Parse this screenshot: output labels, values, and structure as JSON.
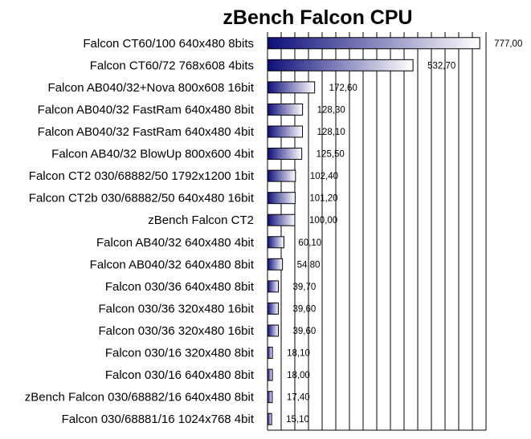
{
  "chart_data": {
    "type": "bar",
    "orientation": "horizontal",
    "title": "zBench Falcon CPU",
    "xlabel": "",
    "ylabel": "",
    "xlim": [
      0,
      800
    ],
    "grid": true,
    "legend": "none",
    "colors": {
      "bar_dark": "#0d0d7a",
      "bar_light": "#ffffff",
      "grid": "#000000"
    },
    "categories": [
      "Falcon CT60/100 640x480 8bits",
      "Falcon CT60/72 768x608 4bits",
      "Falcon AB040/32+Nova 800x608 16bit",
      "Falcon AB040/32 FastRam 640x480 8bit",
      "Falcon AB040/32 FastRam 640x480 4bit",
      "Falcon AB40/32 BlowUp 800x600 4bit",
      "Falcon CT2 030/68882/50 1792x1200 1bit",
      "Falcon CT2b 030/68882/50 640x480 16bit",
      "zBench Falcon CT2",
      "Falcon AB40/32 640x480 4bit",
      "Falcon AB040/32 640x480 8bit",
      "Falcon 030/36 640x480 8bit",
      "Falcon 030/36 320x480 16bit",
      "Falcon 030/36 320x480 16bit",
      "Falcon 030/16 320x480 8bit",
      "Falcon 030/16 640x480 8bit",
      "zBench Falcon 030/68882/16 640x480 8bit",
      "Falcon 030/68881/16 1024x768 4bit"
    ],
    "values": [
      777.0,
      532.7,
      172.6,
      128.3,
      128.1,
      125.5,
      102.4,
      101.2,
      100.0,
      60.1,
      54.8,
      39.7,
      39.6,
      39.6,
      18.1,
      18.0,
      17.4,
      15.1
    ],
    "value_labels": [
      "777,00",
      "532,70",
      "172,60",
      "128,30",
      "128,10",
      "125,50",
      "102,40",
      "101,20",
      "100,00",
      "60,10",
      "54,80",
      "39,70",
      "39,60",
      "39,60",
      "18,10",
      "18,00",
      "17,40",
      "15,10"
    ]
  }
}
